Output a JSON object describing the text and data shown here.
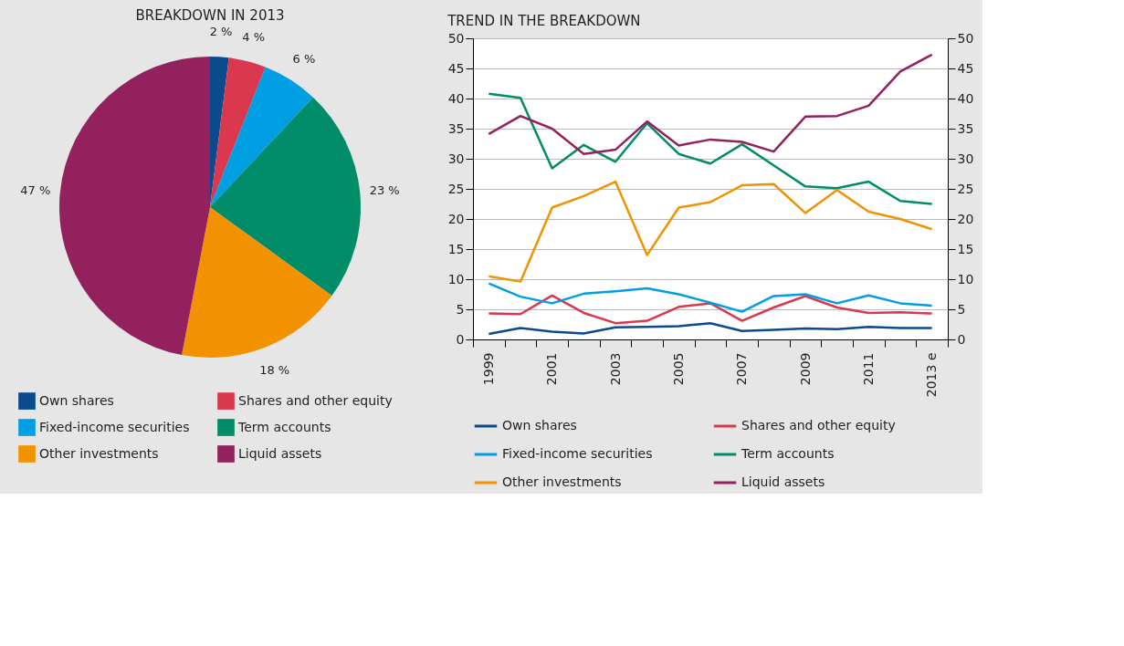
{
  "chart_data": [
    {
      "type": "pie",
      "title": "BREAKDOWN IN 2013",
      "categories": [
        "Own shares",
        "Shares and other equity",
        "Fixed-income securities",
        "Term accounts",
        "Other investments",
        "Liquid assets"
      ],
      "values": [
        2,
        4,
        6,
        23,
        18,
        47
      ],
      "value_labels": [
        "2 %",
        "4 %",
        "6 %",
        "23 %",
        "18 %",
        "47 %"
      ],
      "colors": [
        "#0b4a8c",
        "#d9384f",
        "#009fe3",
        "#008c69",
        "#f39200",
        "#93215e"
      ],
      "legend": "bottom"
    },
    {
      "type": "line",
      "title": "TREND IN THE BREAKDOWN",
      "categories": [
        "1999",
        null,
        "2001",
        null,
        "2003",
        null,
        "2005",
        null,
        "2007",
        null,
        "2009",
        null,
        "2011",
        null,
        "2013 e"
      ],
      "series": [
        {
          "name": "Own shares",
          "color": "#0b4a8c",
          "values": [
            0.9,
            1.9,
            1.3,
            1.0,
            2.0,
            2.1,
            2.2,
            2.7,
            1.4,
            1.6,
            1.8,
            1.7,
            2.1,
            1.9,
            1.9
          ]
        },
        {
          "name": "Shares and other equity",
          "color": "#d9384f",
          "values": [
            4.3,
            4.2,
            7.3,
            4.4,
            2.7,
            3.1,
            5.4,
            6.0,
            3.1,
            5.3,
            7.2,
            5.3,
            4.4,
            4.5,
            4.3
          ]
        },
        {
          "name": "Fixed-income securities",
          "color": "#009fe3",
          "values": [
            9.3,
            7.1,
            6.0,
            7.6,
            8.0,
            8.5,
            7.5,
            6.1,
            4.6,
            7.2,
            7.5,
            6.0,
            7.3,
            6.0,
            5.6
          ]
        },
        {
          "name": "Term accounts",
          "color": "#008c69",
          "values": [
            40.8,
            40.1,
            28.4,
            32.3,
            29.5,
            35.9,
            30.8,
            29.2,
            32.4,
            28.9,
            25.4,
            25.1,
            26.2,
            23.0,
            22.5
          ]
        },
        {
          "name": "Other investments",
          "color": "#f39200",
          "values": [
            10.5,
            9.6,
            21.9,
            23.8,
            26.2,
            14.0,
            21.9,
            22.8,
            25.6,
            25.8,
            21.0,
            24.8,
            21.2,
            20.0,
            18.3
          ]
        },
        {
          "name": "Liquid assets",
          "color": "#93215e",
          "values": [
            34.1,
            37.1,
            35.0,
            30.8,
            31.5,
            36.2,
            32.2,
            33.2,
            32.8,
            31.2,
            37.0,
            37.1,
            38.8,
            44.5,
            47.3
          ]
        }
      ],
      "ylim": [
        0,
        50
      ],
      "yticks": [
        0,
        5,
        10,
        15,
        20,
        25,
        30,
        35,
        40,
        45,
        50
      ],
      "y2lim": [
        0,
        50
      ],
      "y2ticks": [
        0,
        5,
        10,
        15,
        20,
        25,
        30,
        35,
        40,
        45,
        50
      ],
      "grid": "y",
      "legend": "bottom",
      "marker": "none",
      "line_style": "solid"
    }
  ]
}
